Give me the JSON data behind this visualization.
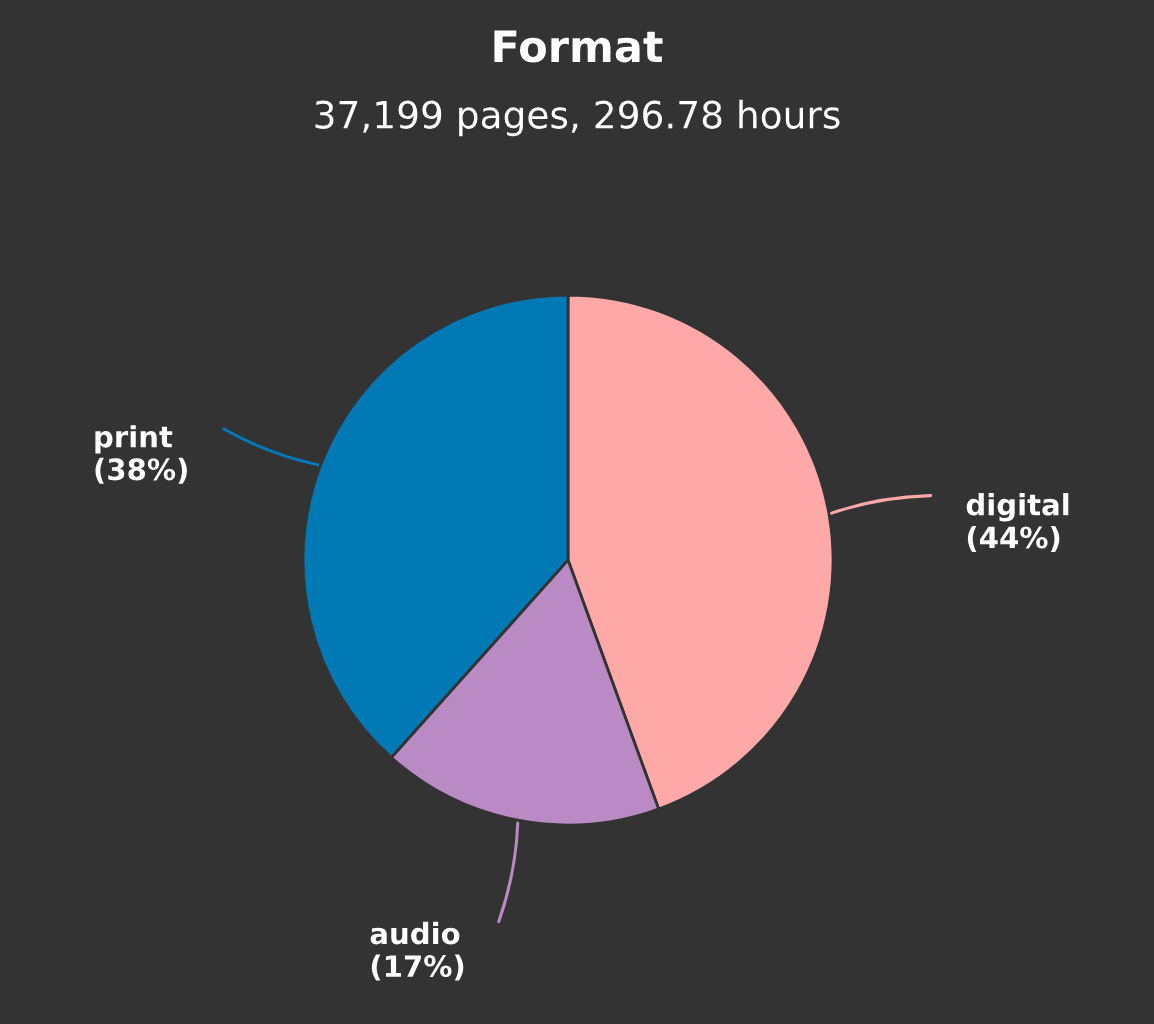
{
  "chart_data": {
    "type": "pie",
    "title": "Format",
    "subtitle": "37,199 pages, 296.78 hours",
    "categories": [
      "digital",
      "audio",
      "print"
    ],
    "values": [
      44,
      17,
      38
    ],
    "value_labels": [
      "(44%)",
      "(17%)",
      "(38%)"
    ],
    "colors": [
      "#ffa8a8",
      "#b98ac4",
      "#0079b5"
    ]
  }
}
